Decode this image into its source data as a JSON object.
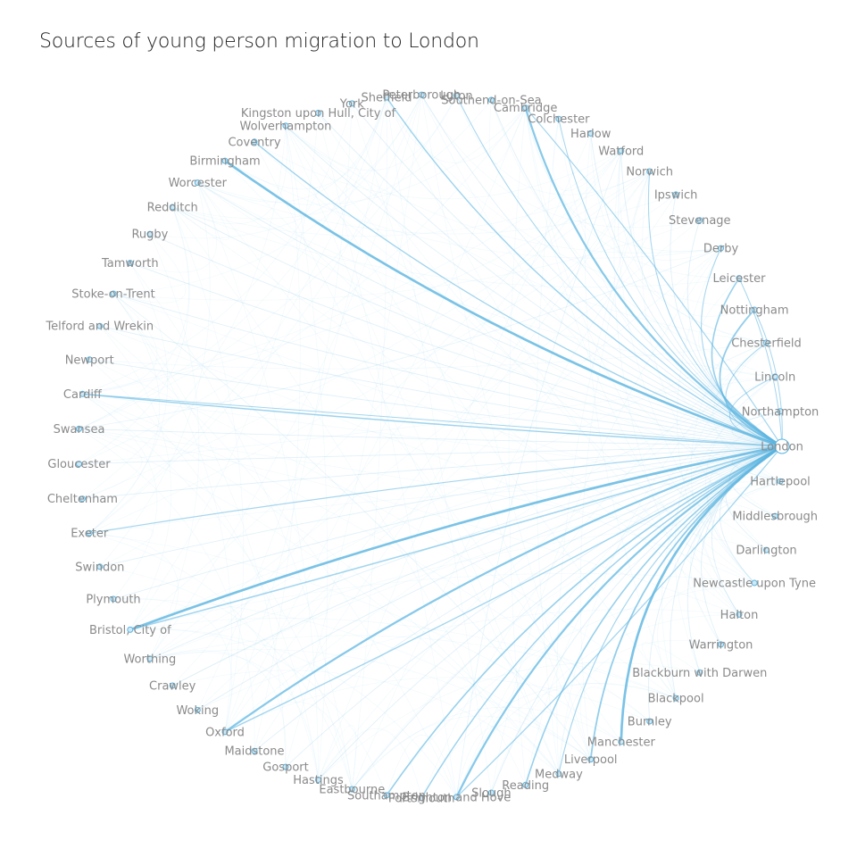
{
  "title": "Sources of young person migration to London",
  "colors": {
    "edge": "#5ab4e0",
    "node": "#5ab4e0",
    "label": "#8a8a8a"
  },
  "diagram": {
    "type": "radial-network",
    "target": "London",
    "nodes": [
      {
        "name": "London"
      },
      {
        "name": "Hartlepool"
      },
      {
        "name": "Middlesbrough"
      },
      {
        "name": "Darlington"
      },
      {
        "name": "Newcastle upon Tyne"
      },
      {
        "name": "Halton"
      },
      {
        "name": "Warrington"
      },
      {
        "name": "Blackburn with Darwen"
      },
      {
        "name": "Blackpool"
      },
      {
        "name": "Burnley"
      },
      {
        "name": "Manchester"
      },
      {
        "name": "Liverpool"
      },
      {
        "name": "Medway"
      },
      {
        "name": "Reading"
      },
      {
        "name": "Slough"
      },
      {
        "name": "Brighton and Hove"
      },
      {
        "name": "Portsmouth"
      },
      {
        "name": "Southampton"
      },
      {
        "name": "Eastbourne"
      },
      {
        "name": "Hastings"
      },
      {
        "name": "Gosport"
      },
      {
        "name": "Maidstone"
      },
      {
        "name": "Oxford"
      },
      {
        "name": "Woking"
      },
      {
        "name": "Crawley"
      },
      {
        "name": "Worthing"
      },
      {
        "name": "Bristol, City of"
      },
      {
        "name": "Plymouth"
      },
      {
        "name": "Swindon"
      },
      {
        "name": "Exeter"
      },
      {
        "name": "Cheltenham"
      },
      {
        "name": "Gloucester"
      },
      {
        "name": "Swansea"
      },
      {
        "name": "Cardiff"
      },
      {
        "name": "Newport"
      },
      {
        "name": "Telford and Wrekin"
      },
      {
        "name": "Stoke-on-Trent"
      },
      {
        "name": "Tamworth"
      },
      {
        "name": "Rugby"
      },
      {
        "name": "Redditch"
      },
      {
        "name": "Worcester"
      },
      {
        "name": "Birmingham"
      },
      {
        "name": "Coventry"
      },
      {
        "name": "Wolverhampton"
      },
      {
        "name": "Kingston upon Hull, City of"
      },
      {
        "name": "York"
      },
      {
        "name": "Sheffield"
      },
      {
        "name": "Peterborough"
      },
      {
        "name": "Luton"
      },
      {
        "name": "Southend-on-Sea"
      },
      {
        "name": "Cambridge"
      },
      {
        "name": "Colchester"
      },
      {
        "name": "Harlow"
      },
      {
        "name": "Watford"
      },
      {
        "name": "Norwich"
      },
      {
        "name": "Ipswich"
      },
      {
        "name": "Stevenage"
      },
      {
        "name": "Derby"
      },
      {
        "name": "Leicester"
      },
      {
        "name": "Nottingham"
      },
      {
        "name": "Chesterfield"
      },
      {
        "name": "Lincoln"
      },
      {
        "name": "Northampton"
      }
    ],
    "flows_to_london": {
      "Birmingham": 3,
      "Bristol, City of": 3,
      "Manchester": 3,
      "Oxford": 2.5,
      "Cambridge": 2.5,
      "Brighton and Hove": 2.5,
      "Nottingham": 2,
      "Leicester": 1.8,
      "Liverpool": 2,
      "Sheffield": 1.6,
      "Southampton": 1.8,
      "Reading": 1.8,
      "Cardiff": 1.6,
      "Coventry": 1.5,
      "Portsmouth": 1.6,
      "Exeter": 1.3,
      "Norwich": 1.2,
      "Medway": 1.3,
      "Luton": 1.2,
      "Derby": 1.2,
      "Colchester": 1.2,
      "Chesterfield": 1.1,
      "Lincoln": 1.1,
      "Leeds": 1
    },
    "flows_from_london": {
      "Bristol, City of": 1.6,
      "Oxford": 1.4,
      "Brighton and Hove": 1.3,
      "Cambridge": 1.2,
      "Cardiff": 1.0,
      "Leicester": 1.0,
      "Nottingham": 1.0
    }
  }
}
